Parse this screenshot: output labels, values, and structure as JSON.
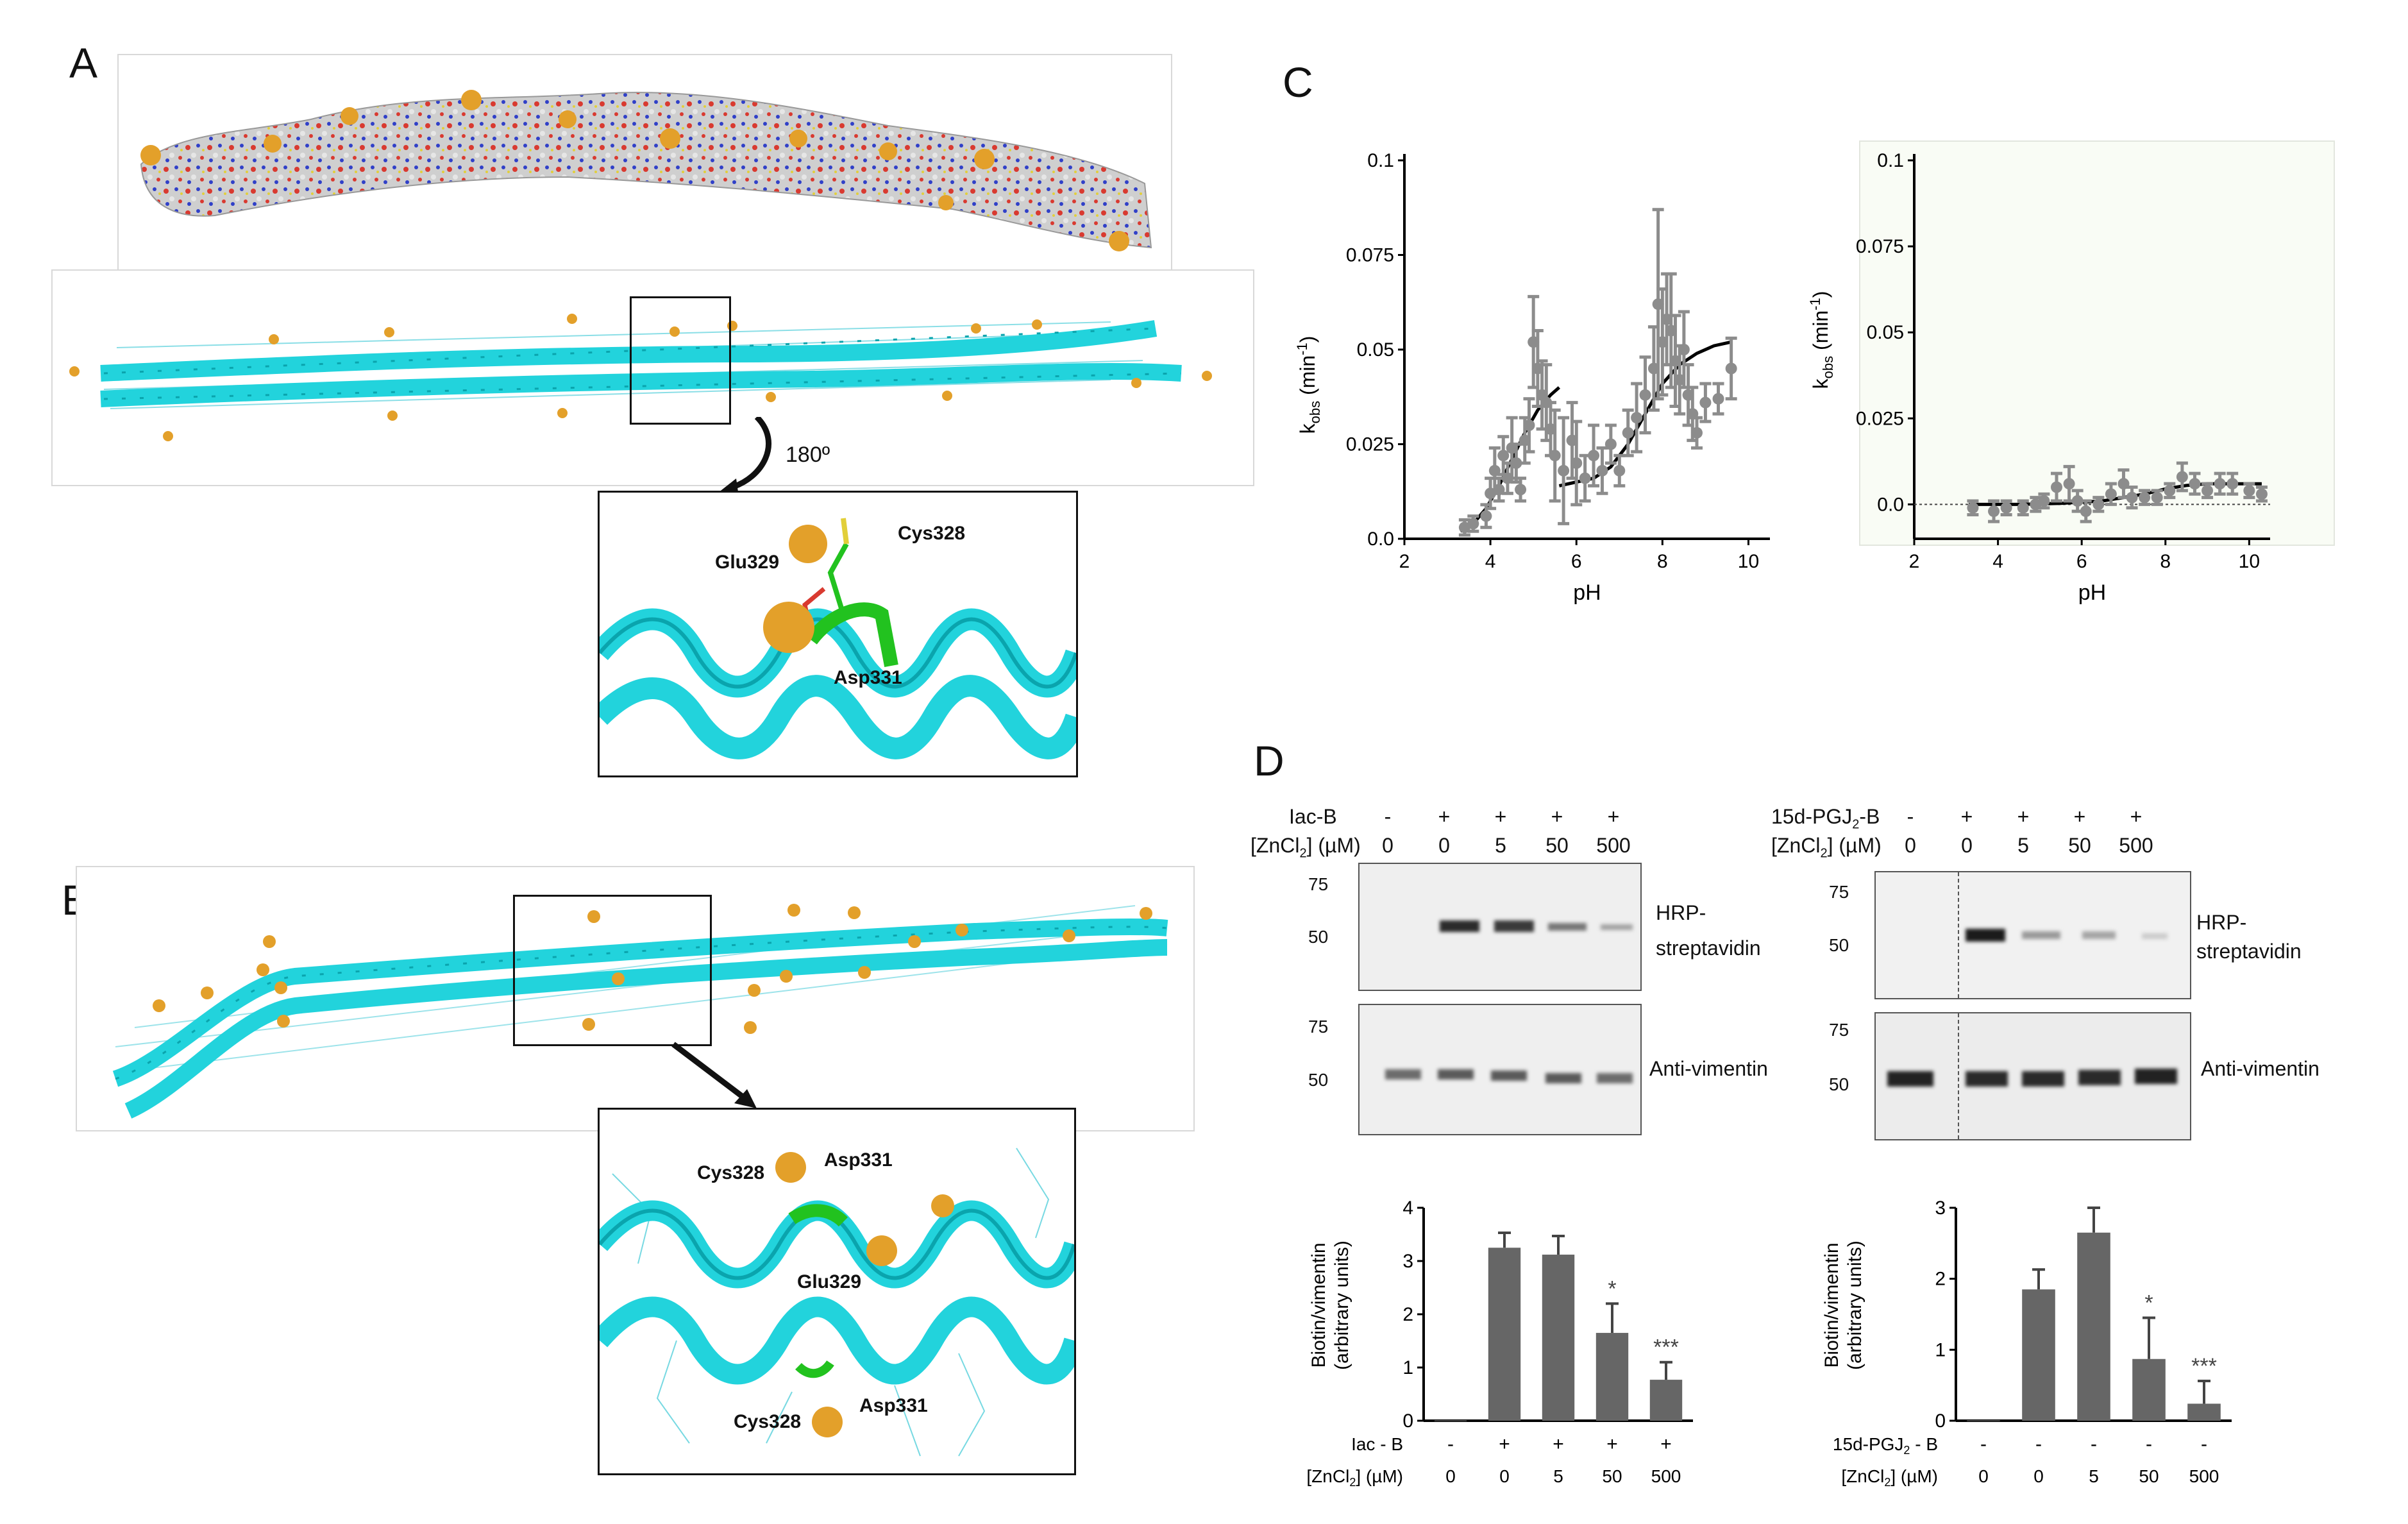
{
  "panels": {
    "a": "A",
    "b": "B",
    "c": "C",
    "d": "D"
  },
  "panel_a": {
    "rotation_label": "180º",
    "zoom_labels": {
      "glu": "Glu329",
      "cys": "Cys328",
      "asp": "Asp331"
    }
  },
  "panel_b": {
    "zoom_labels": {
      "cys_top": "Cys328",
      "asp_top": "Asp331",
      "glu": "Glu329",
      "cys_bottom": "Cys328",
      "asp_bottom": "Asp331"
    }
  },
  "colors": {
    "helix": "#22d3dc",
    "helix_dark": "#0aa4ad",
    "zinc": "#e3a02a",
    "green": "#22c21f",
    "marker": "#8c8c8c",
    "bar": "#666666"
  },
  "panel_d": {
    "left": {
      "reagent_label": "Iac-B",
      "conc_label": "[ZnCl2] (µM)",
      "reagent_signs": [
        "-",
        "+",
        "+",
        "+",
        "+"
      ],
      "conc_values": [
        "0",
        "0",
        "5",
        "50",
        "500"
      ],
      "blot1_label_line1": "HRP-",
      "blot1_label_line2": "streptavidin",
      "blot2_label": "Anti-vimentin",
      "mw_blot1": [
        "75",
        "50"
      ],
      "mw_blot2": [
        "75",
        "50"
      ],
      "bar_ylabel_line1": "Biotin/vimentin",
      "bar_ylabel_line2": "(arbitrary units)",
      "bar_xlabel_reagent": "Iac - B",
      "bar_xlabel_conc": "[ZnCl2] (µM)",
      "sig": [
        "",
        "",
        "",
        "*",
        "***"
      ]
    },
    "right": {
      "reagent_label": "15d-PGJ2-B",
      "conc_label": "[ZnCl2] (µM)",
      "reagent_signs": [
        "-",
        "+",
        "+",
        "+",
        "+"
      ],
      "conc_values": [
        "0",
        "0",
        "5",
        "50",
        "500"
      ],
      "blot1_label_line1": "HRP-",
      "blot1_label_line2": "streptavidin",
      "blot2_label": "Anti-vimentin",
      "mw_blot1": [
        "75",
        "50"
      ],
      "mw_blot2": [
        "75",
        "50"
      ],
      "bar_ylabel_line1": "Biotin/vimentin",
      "bar_ylabel_line2": "(arbitrary units)",
      "bar_xlabel_reagent": "15d-PGJ2 - B",
      "bar_xlabel_conc": "[ZnCl2] (µM)",
      "bar_reagent_signs": [
        "-",
        "-",
        "-",
        "-",
        "-"
      ],
      "sig": [
        "",
        "",
        "",
        "*",
        "***"
      ]
    }
  },
  "chart_data": [
    {
      "type": "scatter",
      "panel": "C-left",
      "xlabel": "pH",
      "ylabel": "kobs (min-1)",
      "xlim": [
        2,
        10.5
      ],
      "ylim": [
        0,
        0.1
      ],
      "xticks": [
        2,
        4,
        6,
        8,
        10
      ],
      "yticks": [
        0.0,
        0.025,
        0.05,
        0.075,
        0.1
      ],
      "ytick_labels": [
        "0.0",
        "0.025",
        "0.05",
        "0.075",
        "0.1"
      ],
      "points": [
        {
          "x": 3.4,
          "y": 0.003,
          "err": 0.002
        },
        {
          "x": 3.6,
          "y": 0.004,
          "err": 0.002
        },
        {
          "x": 3.9,
          "y": 0.006,
          "err": 0.003
        },
        {
          "x": 4.0,
          "y": 0.012,
          "err": 0.004
        },
        {
          "x": 4.1,
          "y": 0.018,
          "err": 0.006
        },
        {
          "x": 4.2,
          "y": 0.013,
          "err": 0.003
        },
        {
          "x": 4.3,
          "y": 0.022,
          "err": 0.005
        },
        {
          "x": 4.4,
          "y": 0.016,
          "err": 0.004
        },
        {
          "x": 4.5,
          "y": 0.024,
          "err": 0.008
        },
        {
          "x": 4.6,
          "y": 0.02,
          "err": 0.005
        },
        {
          "x": 4.7,
          "y": 0.013,
          "err": 0.003
        },
        {
          "x": 4.8,
          "y": 0.026,
          "err": 0.006
        },
        {
          "x": 4.9,
          "y": 0.03,
          "err": 0.007
        },
        {
          "x": 5.0,
          "y": 0.052,
          "err": 0.012
        },
        {
          "x": 5.1,
          "y": 0.045,
          "err": 0.01
        },
        {
          "x": 5.2,
          "y": 0.038,
          "err": 0.009
        },
        {
          "x": 5.3,
          "y": 0.036,
          "err": 0.01
        },
        {
          "x": 5.4,
          "y": 0.029,
          "err": 0.007
        },
        {
          "x": 5.5,
          "y": 0.022,
          "err": 0.012
        },
        {
          "x": 5.7,
          "y": 0.018,
          "err": 0.014
        },
        {
          "x": 5.9,
          "y": 0.026,
          "err": 0.01
        },
        {
          "x": 6.0,
          "y": 0.02,
          "err": 0.011
        },
        {
          "x": 6.2,
          "y": 0.016,
          "err": 0.006
        },
        {
          "x": 6.4,
          "y": 0.022,
          "err": 0.008
        },
        {
          "x": 6.6,
          "y": 0.018,
          "err": 0.006
        },
        {
          "x": 6.8,
          "y": 0.025,
          "err": 0.005
        },
        {
          "x": 7.0,
          "y": 0.018,
          "err": 0.004
        },
        {
          "x": 7.2,
          "y": 0.028,
          "err": 0.006
        },
        {
          "x": 7.4,
          "y": 0.032,
          "err": 0.009
        },
        {
          "x": 7.6,
          "y": 0.038,
          "err": 0.01
        },
        {
          "x": 7.8,
          "y": 0.045,
          "err": 0.011
        },
        {
          "x": 7.9,
          "y": 0.062,
          "err": 0.025
        },
        {
          "x": 8.0,
          "y": 0.052,
          "err": 0.014
        },
        {
          "x": 8.1,
          "y": 0.058,
          "err": 0.012
        },
        {
          "x": 8.2,
          "y": 0.055,
          "err": 0.015
        },
        {
          "x": 8.3,
          "y": 0.047,
          "err": 0.012
        },
        {
          "x": 8.4,
          "y": 0.042,
          "err": 0.009
        },
        {
          "x": 8.5,
          "y": 0.05,
          "err": 0.01
        },
        {
          "x": 8.6,
          "y": 0.038,
          "err": 0.008
        },
        {
          "x": 8.7,
          "y": 0.033,
          "err": 0.007
        },
        {
          "x": 8.8,
          "y": 0.028,
          "err": 0.004
        },
        {
          "x": 9.0,
          "y": 0.036,
          "err": 0.005
        },
        {
          "x": 9.3,
          "y": 0.037,
          "err": 0.004
        },
        {
          "x": 9.6,
          "y": 0.045,
          "err": 0.008
        }
      ],
      "fits": [
        {
          "x": [
            3.3,
            3.6,
            3.9,
            4.2,
            4.5,
            4.8,
            5.1,
            5.4,
            5.6
          ],
          "y": [
            0.002,
            0.004,
            0.008,
            0.014,
            0.021,
            0.028,
            0.034,
            0.038,
            0.04
          ]
        },
        {
          "x": [
            5.6,
            6.0,
            6.4,
            6.8,
            7.2,
            7.6,
            8.0,
            8.4,
            8.8,
            9.2,
            9.6
          ],
          "y": [
            0.014,
            0.015,
            0.016,
            0.019,
            0.025,
            0.033,
            0.041,
            0.046,
            0.049,
            0.051,
            0.052
          ]
        }
      ]
    },
    {
      "type": "scatter",
      "panel": "C-right",
      "xlabel": "pH",
      "ylabel": "kobs (min-1)",
      "xlim": [
        2,
        10.5
      ],
      "ylim": [
        -0.01,
        0.1
      ],
      "xticks": [
        2,
        4,
        6,
        8,
        10
      ],
      "yticks": [
        0.0,
        0.025,
        0.05,
        0.075,
        0.1
      ],
      "ytick_labels": [
        "0.0",
        "0.025",
        "0.05",
        "0.075",
        "0.1"
      ],
      "points": [
        {
          "x": 3.4,
          "y": -0.001,
          "err": 0.002
        },
        {
          "x": 3.9,
          "y": -0.002,
          "err": 0.003
        },
        {
          "x": 4.2,
          "y": -0.001,
          "err": 0.002
        },
        {
          "x": 4.6,
          "y": -0.001,
          "err": 0.002
        },
        {
          "x": 4.9,
          "y": 0.0,
          "err": 0.002
        },
        {
          "x": 5.1,
          "y": 0.001,
          "err": 0.002
        },
        {
          "x": 5.4,
          "y": 0.005,
          "err": 0.004
        },
        {
          "x": 5.7,
          "y": 0.006,
          "err": 0.005
        },
        {
          "x": 5.9,
          "y": 0.001,
          "err": 0.003
        },
        {
          "x": 6.1,
          "y": -0.002,
          "err": 0.003
        },
        {
          "x": 6.4,
          "y": 0.0,
          "err": 0.002
        },
        {
          "x": 6.7,
          "y": 0.003,
          "err": 0.003
        },
        {
          "x": 7.0,
          "y": 0.006,
          "err": 0.004
        },
        {
          "x": 7.2,
          "y": 0.002,
          "err": 0.003
        },
        {
          "x": 7.5,
          "y": 0.002,
          "err": 0.002
        },
        {
          "x": 7.8,
          "y": 0.002,
          "err": 0.002
        },
        {
          "x": 8.1,
          "y": 0.004,
          "err": 0.002
        },
        {
          "x": 8.4,
          "y": 0.008,
          "err": 0.004
        },
        {
          "x": 8.7,
          "y": 0.006,
          "err": 0.003
        },
        {
          "x": 9.0,
          "y": 0.004,
          "err": 0.002
        },
        {
          "x": 9.3,
          "y": 0.006,
          "err": 0.003
        },
        {
          "x": 9.6,
          "y": 0.006,
          "err": 0.003
        },
        {
          "x": 10.0,
          "y": 0.004,
          "err": 0.002
        },
        {
          "x": 10.3,
          "y": 0.003,
          "err": 0.002
        }
      ],
      "fits": [
        {
          "x": [
            3.3,
            4.5,
            5.5,
            6.5,
            7.0,
            7.5,
            8.0,
            8.5,
            9.0,
            9.5,
            10.3
          ],
          "y": [
            0.0,
            0.0,
            0.0003,
            0.001,
            0.002,
            0.003,
            0.0045,
            0.0055,
            0.006,
            0.006,
            0.006
          ]
        }
      ],
      "zero_line": true
    },
    {
      "type": "bar",
      "panel": "D-left",
      "categories": [
        "0",
        "0",
        "5",
        "50",
        "500"
      ],
      "values": [
        0.0,
        3.25,
        3.12,
        1.65,
        0.77
      ],
      "errors": [
        0,
        0.28,
        0.35,
        0.55,
        0.33
      ],
      "ylim": [
        0,
        4
      ],
      "yticks": [
        0,
        1,
        2,
        3,
        4
      ]
    },
    {
      "type": "bar",
      "panel": "D-right",
      "categories": [
        "0",
        "0",
        "5",
        "50",
        "500"
      ],
      "values": [
        0.0,
        1.85,
        2.65,
        0.87,
        0.24
      ],
      "errors": [
        0,
        0.28,
        0.35,
        0.58,
        0.32
      ],
      "ylim": [
        0,
        3
      ],
      "yticks": [
        0,
        1,
        2,
        3
      ]
    }
  ]
}
